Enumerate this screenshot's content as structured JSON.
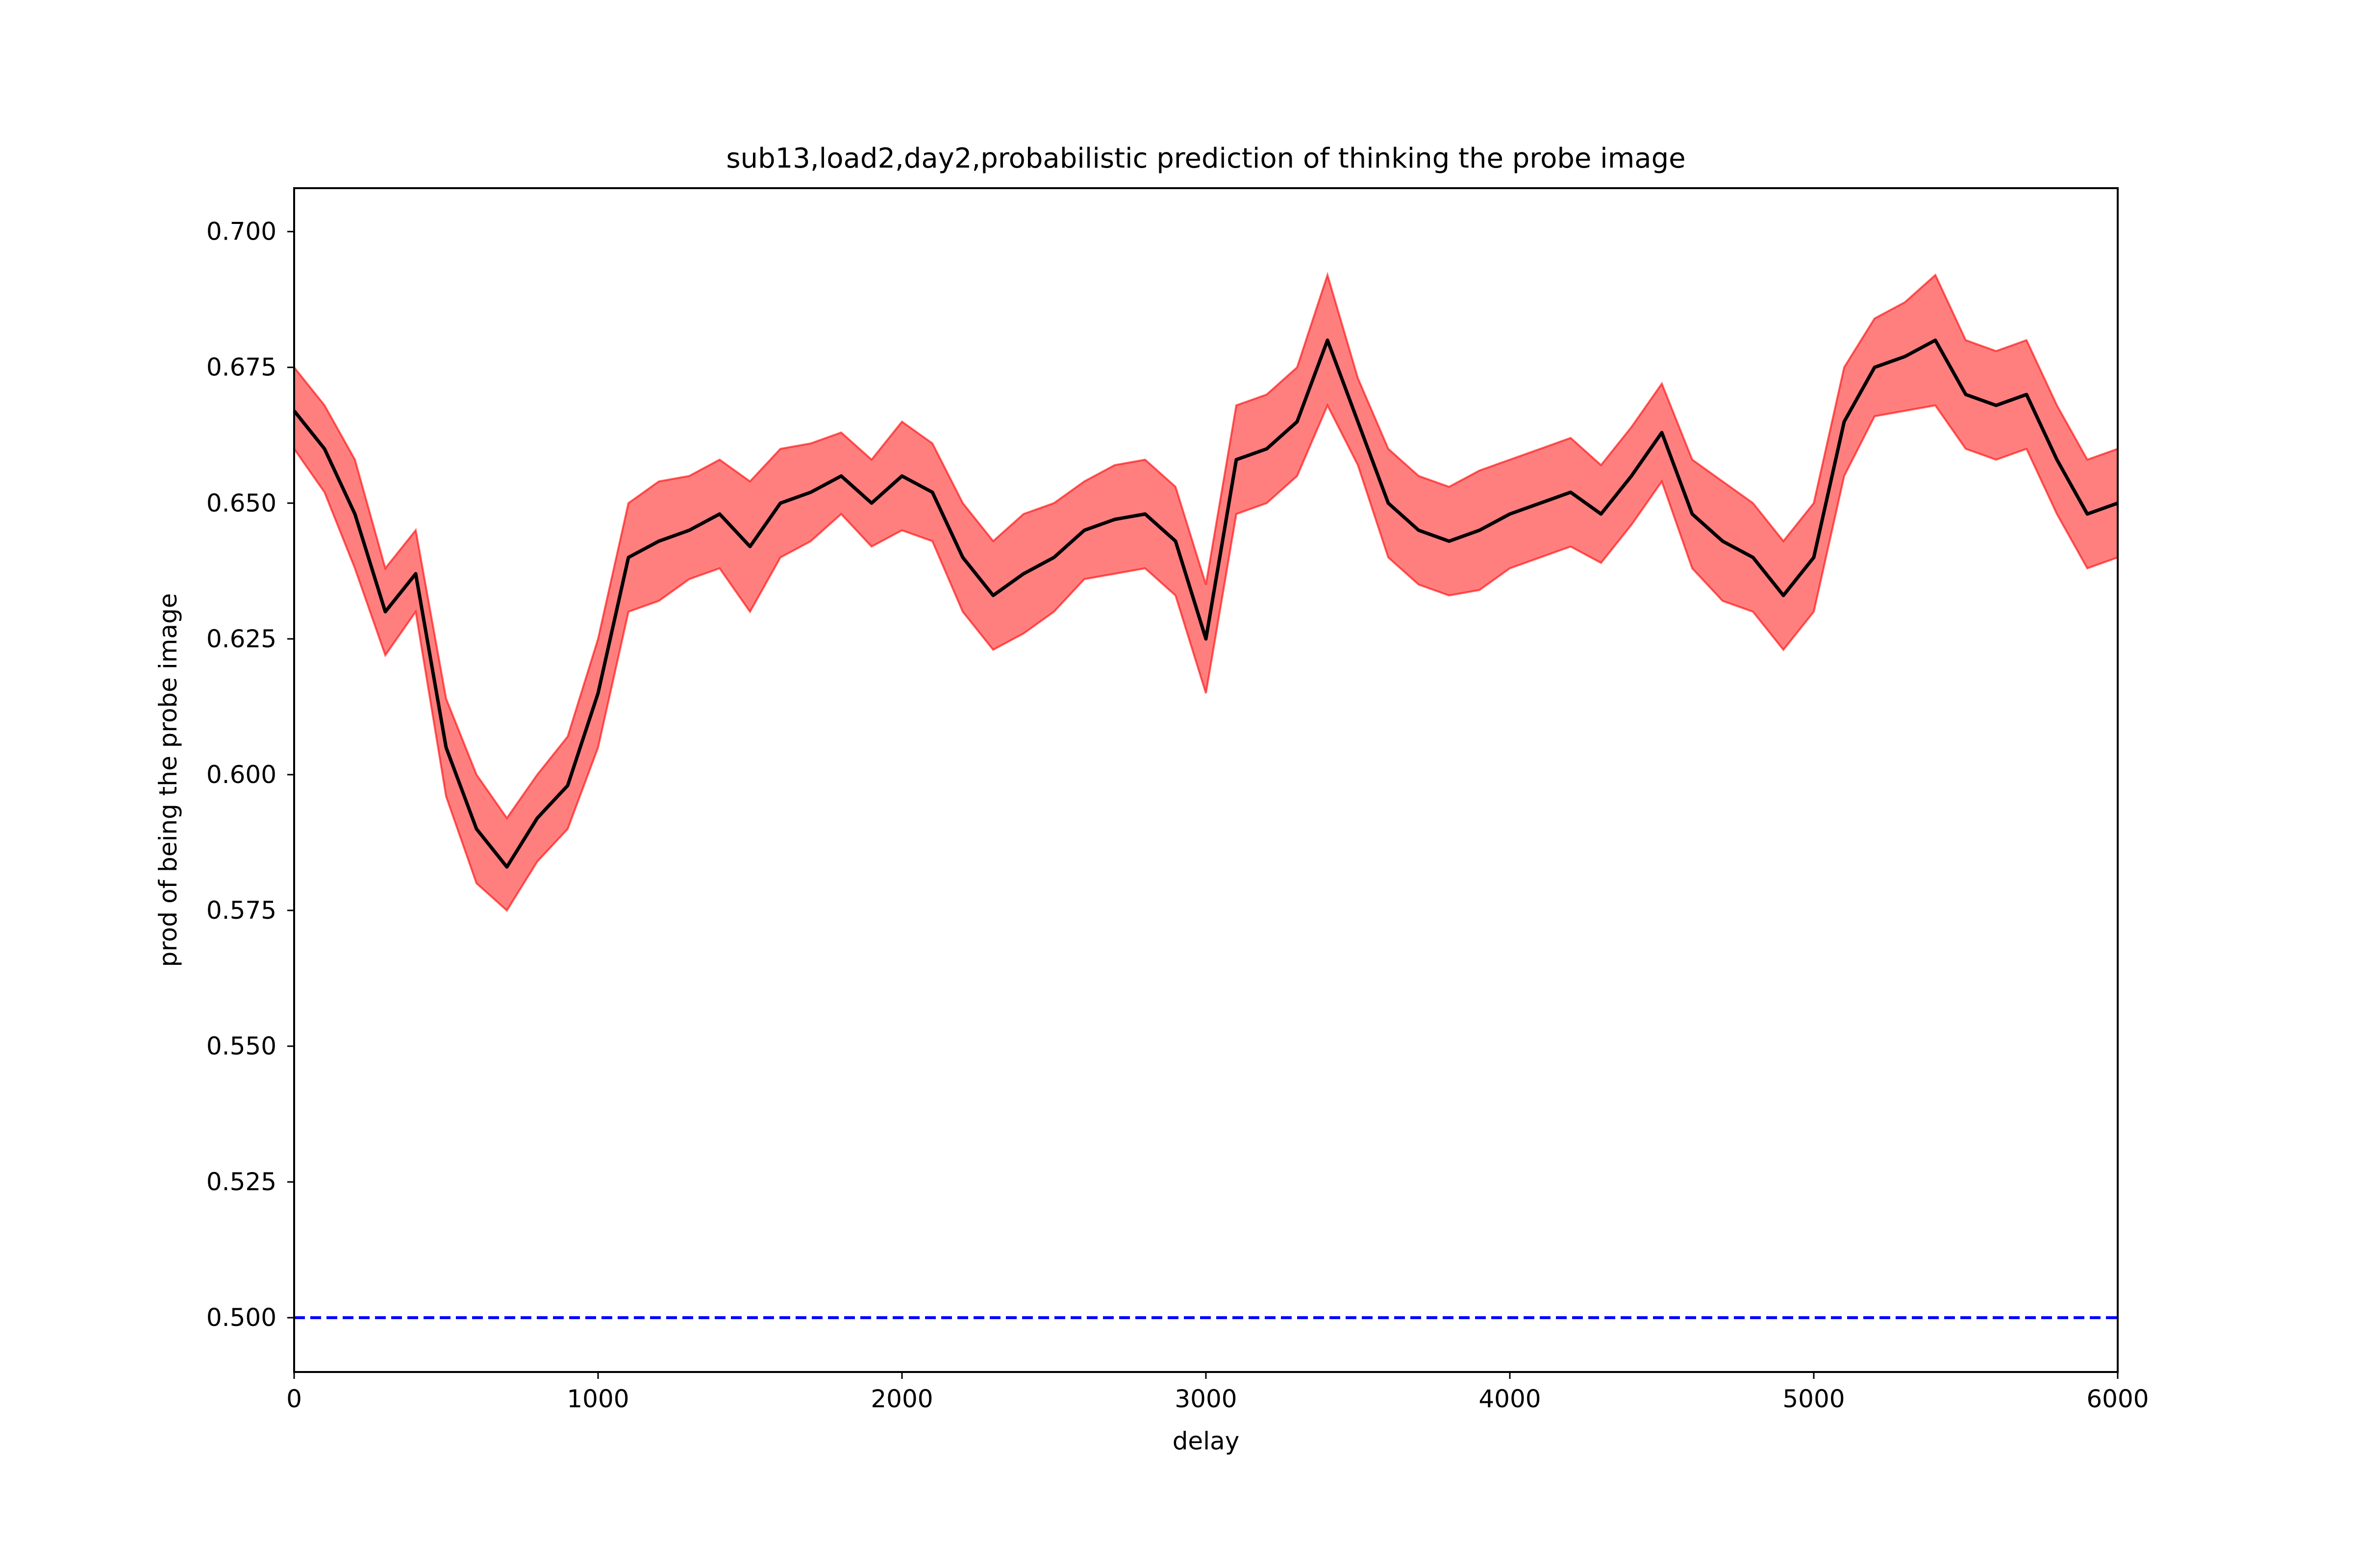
{
  "chart_data": {
    "type": "line",
    "title": "sub13,load2,day2,probabilistic prediction of thinking the probe image",
    "xlabel": "delay",
    "ylabel": "prod of being the probe image",
    "xlim": [
      0,
      6000
    ],
    "ylim": [
      0.49,
      0.708
    ],
    "xticks": [
      0,
      1000,
      2000,
      3000,
      4000,
      5000,
      6000
    ],
    "xtick_labels": [
      "0",
      "1000",
      "2000",
      "3000",
      "4000",
      "5000",
      "6000"
    ],
    "yticks": [
      0.5,
      0.525,
      0.55,
      0.575,
      0.6,
      0.625,
      0.65,
      0.675,
      0.7
    ],
    "ytick_labels": [
      "0.500",
      "0.525",
      "0.550",
      "0.575",
      "0.600",
      "0.625",
      "0.650",
      "0.675",
      "0.700"
    ],
    "grid": false,
    "colors": {
      "mean_line": "#000000",
      "band_fill": "#ff0000",
      "band_opacity": 0.5,
      "reference_line": "#0000ff"
    },
    "reference_line": {
      "y": 0.5,
      "style": "dashed"
    },
    "series": [
      {
        "x": [
          0,
          100,
          200,
          300,
          400,
          500,
          600,
          700,
          800,
          900,
          1000,
          1100,
          1200,
          1300,
          1400,
          1500,
          1600,
          1700,
          1800,
          1900,
          2000,
          2100,
          2200,
          2300,
          2400,
          2500,
          2600,
          2700,
          2800,
          2900,
          3000,
          3100,
          3200,
          3300,
          3400,
          3500,
          3600,
          3700,
          3800,
          3900,
          4000,
          4100,
          4200,
          4300,
          4400,
          4500,
          4600,
          4700,
          4800,
          4900,
          5000,
          5100,
          5200,
          5300,
          5400,
          5500,
          5600,
          5700,
          5800,
          5900,
          6000
        ],
        "y": [
          0.667,
          0.66,
          0.648,
          0.63,
          0.637,
          0.605,
          0.59,
          0.583,
          0.592,
          0.598,
          0.615,
          0.64,
          0.643,
          0.645,
          0.648,
          0.642,
          0.65,
          0.652,
          0.655,
          0.65,
          0.655,
          0.652,
          0.64,
          0.633,
          0.637,
          0.64,
          0.645,
          0.647,
          0.648,
          0.643,
          0.625,
          0.658,
          0.66,
          0.665,
          0.68,
          0.665,
          0.65,
          0.645,
          0.643,
          0.645,
          0.648,
          0.65,
          0.652,
          0.648,
          0.655,
          0.663,
          0.648,
          0.643,
          0.64,
          0.633,
          0.64,
          0.665,
          0.675,
          0.677,
          0.68,
          0.67,
          0.668,
          0.67,
          0.658,
          0.648,
          0.65
        ],
        "lower": [
          0.66,
          0.652,
          0.638,
          0.622,
          0.63,
          0.596,
          0.58,
          0.575,
          0.584,
          0.59,
          0.605,
          0.63,
          0.632,
          0.636,
          0.638,
          0.63,
          0.64,
          0.643,
          0.648,
          0.642,
          0.645,
          0.643,
          0.63,
          0.623,
          0.626,
          0.63,
          0.636,
          0.637,
          0.638,
          0.633,
          0.615,
          0.648,
          0.65,
          0.655,
          0.668,
          0.657,
          0.64,
          0.635,
          0.633,
          0.634,
          0.638,
          0.64,
          0.642,
          0.639,
          0.646,
          0.654,
          0.638,
          0.632,
          0.63,
          0.623,
          0.63,
          0.655,
          0.666,
          0.667,
          0.668,
          0.66,
          0.658,
          0.66,
          0.648,
          0.638,
          0.64
        ],
        "upper": [
          0.675,
          0.668,
          0.658,
          0.638,
          0.645,
          0.614,
          0.6,
          0.592,
          0.6,
          0.607,
          0.625,
          0.65,
          0.654,
          0.655,
          0.658,
          0.654,
          0.66,
          0.661,
          0.663,
          0.658,
          0.665,
          0.661,
          0.65,
          0.643,
          0.648,
          0.65,
          0.654,
          0.657,
          0.658,
          0.653,
          0.635,
          0.668,
          0.67,
          0.675,
          0.692,
          0.673,
          0.66,
          0.655,
          0.653,
          0.656,
          0.658,
          0.66,
          0.662,
          0.657,
          0.664,
          0.672,
          0.658,
          0.654,
          0.65,
          0.643,
          0.65,
          0.675,
          0.684,
          0.687,
          0.692,
          0.68,
          0.678,
          0.68,
          0.668,
          0.658,
          0.66
        ]
      }
    ]
  }
}
